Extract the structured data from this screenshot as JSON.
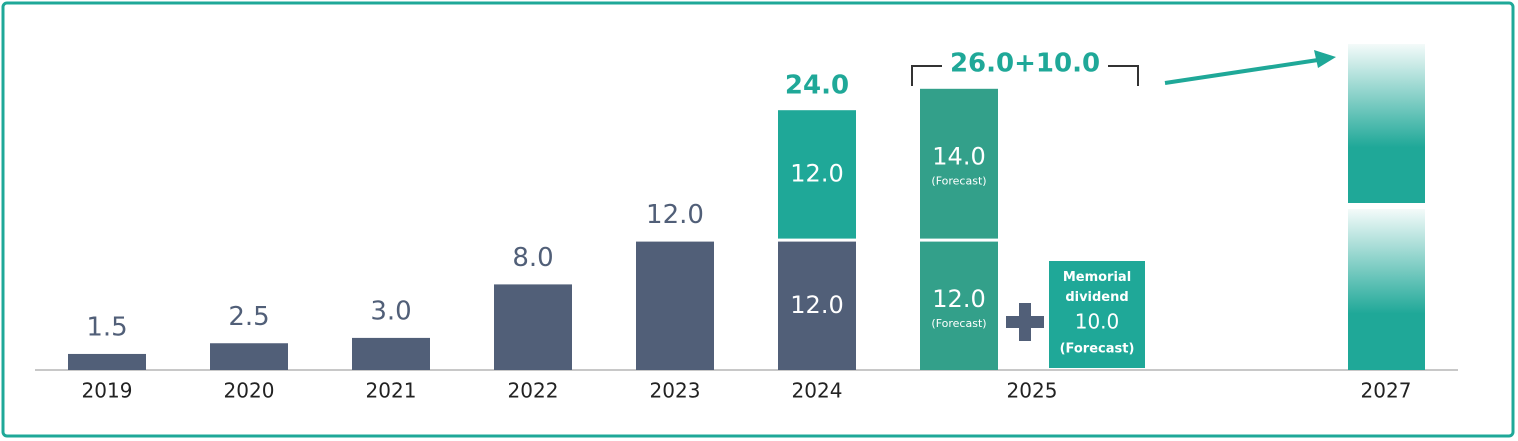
{
  "chart_data": {
    "type": "bar",
    "categories": [
      "2019",
      "2020",
      "2021",
      "2022",
      "2023",
      "2024",
      "2025",
      "2027"
    ],
    "series": [
      {
        "colors": [
          "#515f78",
          "#515f78",
          "#515f78",
          "#515f78",
          "#515f78",
          "#515f78",
          "#33a08a",
          null
        ],
        "values": [
          1.5,
          2.5,
          3,
          8,
          12,
          12,
          12,
          null
        ],
        "value_labels": [
          "1.5",
          "2.5",
          "3.0",
          "8.0",
          "12.0",
          "12.0",
          "12.0",
          null
        ],
        "notes": [
          null,
          null,
          null,
          null,
          null,
          null,
          "(Forecast)",
          null
        ]
      },
      {
        "colors": [
          null,
          null,
          null,
          null,
          null,
          "#1fa898",
          "#33a08a",
          null
        ],
        "values": [
          null,
          null,
          null,
          null,
          null,
          12,
          14,
          null
        ],
        "value_labels": [
          null,
          null,
          null,
          null,
          null,
          "12.0",
          "14.0",
          null
        ],
        "notes": [
          null,
          null,
          null,
          null,
          null,
          null,
          "(Forecast)",
          null
        ]
      }
    ],
    "totals": [
      {
        "value": 24,
        "label": "24.0"
      }
    ],
    "bracket_label": "26.0+10.0",
    "memorial": {
      "label": "Memorial dividend",
      "value": 10,
      "value_label": "10.0",
      "note": "(Forecast)",
      "color": "#1fa898"
    }
  }
}
